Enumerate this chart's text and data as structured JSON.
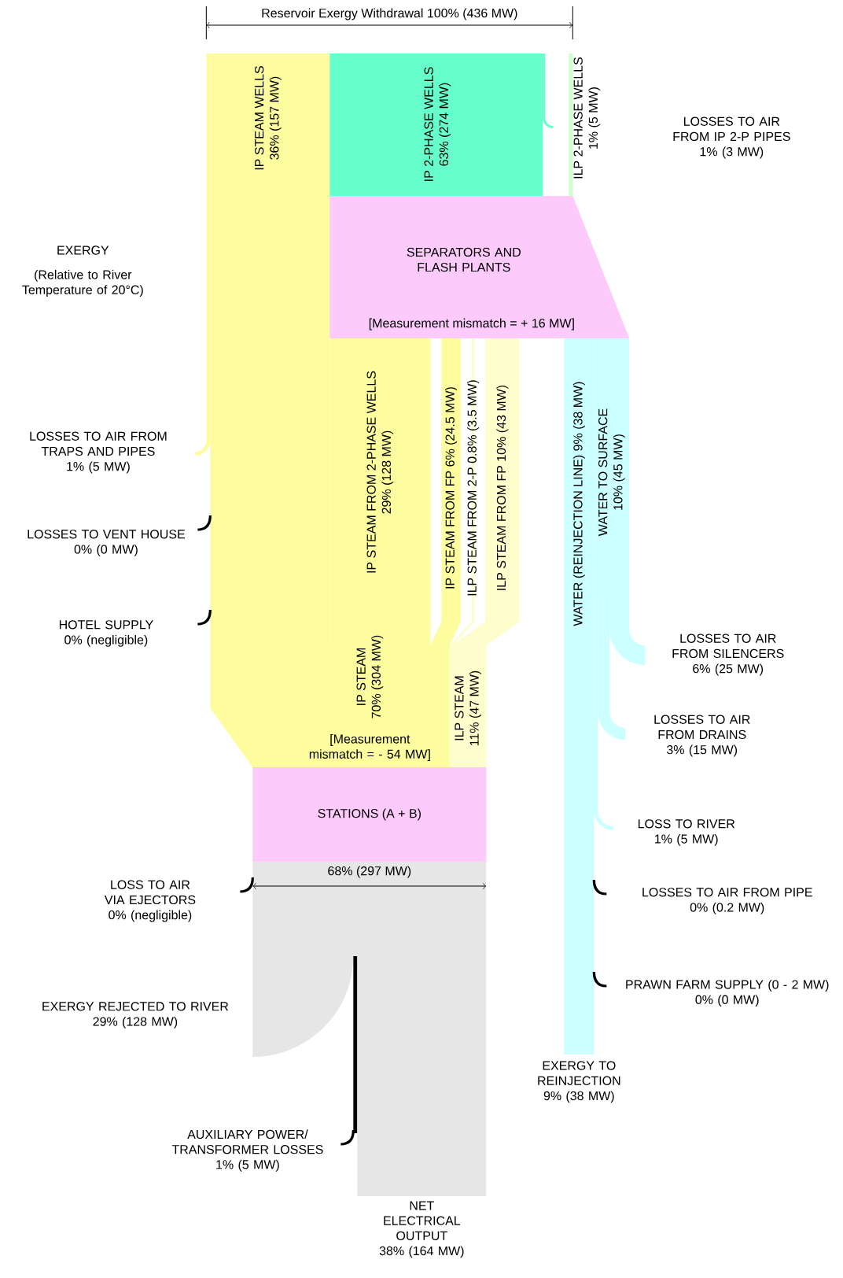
{
  "chart_data": {
    "type": "other",
    "title": "EXERGY",
    "subtitle": "(Relative to River Temperature of 20°C)",
    "categories": [
      "Reservoir Exergy Withdrawal",
      "IP STEAM WELLS",
      "IP 2-PHASE WELLS",
      "ILP 2-PHASE WELLS",
      "LOSSES TO AIR FROM IP 2-P PIPES",
      "LOSSES TO AIR FROM TRAPS AND PIPES",
      "LOSSES TO VENT HOUSE",
      "HOTEL SUPPLY",
      "IP STEAM FROM 2-PHASE WELLS",
      "IP STEAM FROM FP",
      "ILP STEAM FROM 2-P",
      "ILP STEAM FROM FP",
      "WATER (REINJECTION LINE)",
      "WATER TO SURFACE",
      "LOSSES TO AIR FROM SILENCERS",
      "LOSSES TO AIR FROM DRAINS",
      "LOSS TO RIVER",
      "IP STEAM",
      "ILP STEAM",
      "STATIONS (A + B)",
      "LOSS TO AIR VIA EJECTORS",
      "EXERGY REJECTED TO RIVER",
      "AUXILIARY POWER/ TRANSFORMER LOSSES",
      "NET ELECTRICAL OUTPUT",
      "LOSSES TO AIR FROM PIPE",
      "PRAWN FARM SUPPLY (0 - 2 MW)",
      "EXERGY TO REINJECTION",
      "SEPARATORS AND FLASH PLANTS"
    ],
    "values": [
      436,
      157,
      274,
      5,
      3,
      5,
      0,
      0,
      128,
      24.5,
      3.5,
      43,
      38,
      45,
      25,
      15,
      5,
      304,
      47,
      null,
      0,
      128,
      5,
      164,
      0.2,
      0,
      38,
      null
    ],
    "value_labels": [
      "100% (436 MW)",
      "36% (157 MW)",
      "63% (274 MW)",
      "1% (5 MW)",
      "1% (3 MW)",
      "1% (5 MW)",
      "0% (0 MW)",
      "0% (negligible)",
      "29% (128 MW)",
      "6% (24.5 MW)",
      "0.8% (3.5 MW)",
      "10% (43 MW)",
      "9% (38 MW)",
      "10% (45 MW)",
      "6% (25 MW)",
      "3% (15 MW)",
      "1% (5 MW)",
      "70% (304 MW)",
      "11% (47 MW)",
      null,
      "0% (negligible)",
      "29% (128 MW)",
      "1% (5 MW)",
      "38% (164 MW)",
      "0% (0.2 MW)",
      "0% (0 MW)",
      "9% (38 MW)",
      null
    ],
    "colors": [
      "#000000",
      "#fdfd9f",
      "#66ffcc",
      "#ccffcc",
      "#66ffcc",
      "#fdfd9f",
      "#000000",
      "#000000",
      "#fdfd9f",
      "#fdfd9f",
      "#fefecc",
      "#fefecc",
      "#ccffff",
      "#ccffff",
      "#ccffff",
      "#ccffff",
      "#ccffff",
      "#fdfd9f",
      "#fefecc",
      "#fccbfc",
      "#000000",
      "#e6e6e6",
      "#000000",
      "#e6e6e6",
      "#000000",
      "#000000",
      "#ccffff",
      "#fccbfc"
    ],
    "annotations": [
      "[Measurement mismatch = + 16 MW]",
      "[Measurement mismatch = - 54 MW]",
      "68% (297 MW)"
    ]
  }
}
